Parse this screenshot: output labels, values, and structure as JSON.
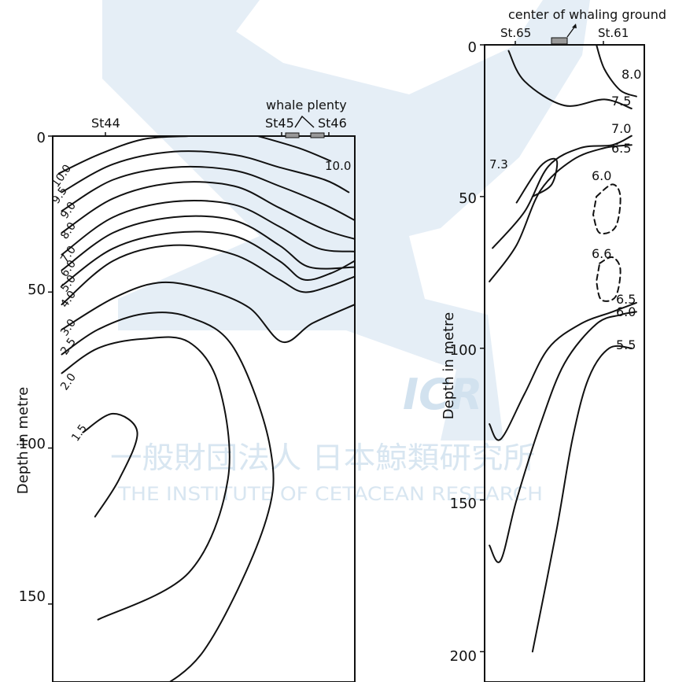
{
  "watermark": {
    "text_jp": "一般財団法人 日本鯨類研究所",
    "text_en": "THE INSTITUTE OF CETACEAN RESEARCH",
    "logo_text": "ICR",
    "color": "#cfe0ee"
  },
  "chart_data": [
    {
      "type": "contour",
      "ylabel": "Depth in metre",
      "ylim": [
        0,
        175
      ],
      "y_ticks": [
        0,
        50,
        100,
        150
      ],
      "y_tick_labels": [
        "0",
        "50",
        "100",
        "150"
      ],
      "stations": [
        "St44",
        "St45",
        "St46"
      ],
      "top_annotation": "whale plenty",
      "contour_labels": [
        "10.0",
        "10.0",
        "9.5",
        "9.0",
        "8.0",
        "7.0",
        "6.0",
        "5.0",
        "4.0",
        "3.0",
        "2.5",
        "2.0",
        "1.5"
      ],
      "series": [
        {
          "value": "10.0",
          "points": [
            [
              0.02,
              12
            ],
            [
              0.15,
              6
            ],
            [
              0.3,
              1
            ],
            [
              0.45,
              0
            ]
          ]
        },
        {
          "value": "10.0",
          "points": [
            [
              0.68,
              0
            ],
            [
              0.82,
              4
            ],
            [
              0.92,
              8
            ]
          ]
        },
        {
          "value": "9.5",
          "points": [
            [
              0.03,
              18
            ],
            [
              0.2,
              9
            ],
            [
              0.4,
              5
            ],
            [
              0.6,
              6
            ],
            [
              0.75,
              10
            ],
            [
              0.9,
              14
            ],
            [
              0.98,
              18
            ]
          ]
        },
        {
          "value": "9.0",
          "points": [
            [
              0.03,
              24
            ],
            [
              0.2,
              14
            ],
            [
              0.4,
              10
            ],
            [
              0.6,
              11
            ],
            [
              0.75,
              16
            ],
            [
              0.9,
              22
            ],
            [
              1.0,
              27
            ]
          ]
        },
        {
          "value": "8.0",
          "points": [
            [
              0.03,
              31
            ],
            [
              0.2,
              20
            ],
            [
              0.4,
              15
            ],
            [
              0.6,
              16
            ],
            [
              0.75,
              23
            ],
            [
              0.9,
              30
            ],
            [
              1.0,
              33
            ]
          ]
        },
        {
          "value": "7.0",
          "points": [
            [
              0.03,
              38
            ],
            [
              0.2,
              26
            ],
            [
              0.4,
              21
            ],
            [
              0.6,
              22
            ],
            [
              0.75,
              29
            ],
            [
              0.88,
              36
            ],
            [
              1.0,
              37
            ]
          ]
        },
        {
          "value": "6.0",
          "points": [
            [
              0.03,
              43
            ],
            [
              0.2,
              31
            ],
            [
              0.4,
              26
            ],
            [
              0.6,
              27
            ],
            [
              0.75,
              35
            ],
            [
              0.85,
              42
            ],
            [
              1.0,
              42
            ]
          ]
        },
        {
          "value": "5.0",
          "points": [
            [
              0.03,
              48
            ],
            [
              0.2,
              36
            ],
            [
              0.4,
              31
            ],
            [
              0.6,
              32
            ],
            [
              0.75,
              40
            ],
            [
              0.83,
              46
            ],
            [
              0.92,
              44
            ],
            [
              1.0,
              40
            ]
          ]
        },
        {
          "value": "4.0",
          "points": [
            [
              0.03,
              54
            ],
            [
              0.2,
              40
            ],
            [
              0.4,
              35
            ],
            [
              0.6,
              38
            ],
            [
              0.75,
              46
            ],
            [
              0.83,
              50
            ],
            [
              0.92,
              48
            ],
            [
              1.0,
              45
            ]
          ]
        },
        {
          "value": "3.0",
          "points": [
            [
              0.03,
              62
            ],
            [
              0.2,
              52
            ],
            [
              0.35,
              47
            ],
            [
              0.5,
              49
            ],
            [
              0.65,
              55
            ],
            [
              0.76,
              66
            ],
            [
              0.86,
              60
            ],
            [
              1.0,
              54
            ]
          ]
        },
        {
          "value": "2.5",
          "points": [
            [
              0.03,
              70
            ],
            [
              0.15,
              62
            ],
            [
              0.3,
              57
            ],
            [
              0.45,
              58
            ],
            [
              0.6,
              68
            ],
            [
              0.72,
              100
            ],
            [
              0.7,
              125
            ],
            [
              0.5,
              165
            ],
            [
              0.3,
              180
            ]
          ]
        },
        {
          "value": "2.0",
          "points": [
            [
              0.03,
              76
            ],
            [
              0.15,
              68
            ],
            [
              0.3,
              65
            ],
            [
              0.45,
              66
            ],
            [
              0.55,
              80
            ],
            [
              0.58,
              110
            ],
            [
              0.45,
              140
            ],
            [
              0.15,
              155
            ]
          ]
        },
        {
          "value": "1.5",
          "points": [
            [
              0.1,
              95
            ],
            [
              0.2,
              89
            ],
            [
              0.28,
              95
            ],
            [
              0.22,
              110
            ],
            [
              0.14,
              122
            ]
          ]
        }
      ]
    },
    {
      "type": "contour",
      "ylabel": "Depth in metre",
      "ylim": [
        0,
        210
      ],
      "y_ticks": [
        0,
        50,
        100,
        150,
        200
      ],
      "y_tick_labels": [
        "0",
        "50",
        "100",
        "150",
        "200"
      ],
      "stations": [
        "St.65",
        "St.61"
      ],
      "top_annotation": "center of whaling ground",
      "contour_labels": [
        "8.0",
        "7.5",
        "7.0",
        "6.5",
        "7.3",
        "6.0",
        "6.6",
        "6.5",
        "6.0",
        "5.5"
      ],
      "series": [
        {
          "value": "8.0",
          "points": [
            [
              0.7,
              0
            ],
            [
              0.75,
              8
            ],
            [
              0.85,
              15
            ],
            [
              0.95,
              17
            ]
          ]
        },
        {
          "value": "7.5",
          "points": [
            [
              0.15,
              2
            ],
            [
              0.25,
              12
            ],
            [
              0.5,
              20
            ],
            [
              0.75,
              18
            ],
            [
              0.92,
              21
            ]
          ]
        },
        {
          "value": "7.0",
          "points": [
            [
              0.05,
              67
            ],
            [
              0.25,
              55
            ],
            [
              0.4,
              40
            ],
            [
              0.6,
              34
            ],
            [
              0.8,
              33
            ],
            [
              0.92,
              30
            ]
          ]
        },
        {
          "value": "6.5",
          "points": [
            [
              0.03,
              78
            ],
            [
              0.2,
              66
            ],
            [
              0.35,
              48
            ],
            [
              0.55,
              38
            ],
            [
              0.75,
              34
            ],
            [
              0.92,
              33
            ]
          ]
        },
        {
          "value": "7.3",
          "points": [
            [
              0.2,
              52
            ],
            [
              0.35,
              40
            ],
            [
              0.45,
              38
            ],
            [
              0.42,
              46
            ],
            [
              0.3,
              50
            ]
          ]
        },
        {
          "value": "6.0",
          "points": [
            [
              0.7,
              50
            ],
            [
              0.8,
              46
            ],
            [
              0.85,
              50
            ],
            [
              0.82,
              60
            ],
            [
              0.72,
              62
            ],
            [
              0.68,
              56
            ]
          ]
        },
        {
          "value": "6.6",
          "points": [
            [
              0.72,
              72
            ],
            [
              0.8,
              70
            ],
            [
              0.85,
              74
            ],
            [
              0.82,
              83
            ],
            [
              0.73,
              84
            ],
            [
              0.7,
              78
            ]
          ]
        },
        {
          "value": "6.5",
          "points": [
            [
              0.03,
              125
            ],
            [
              0.1,
              130
            ],
            [
              0.25,
              115
            ],
            [
              0.4,
              100
            ],
            [
              0.6,
              92
            ],
            [
              0.8,
              88
            ],
            [
              0.95,
              85
            ]
          ]
        },
        {
          "value": "6.0",
          "points": [
            [
              0.03,
              165
            ],
            [
              0.1,
              170
            ],
            [
              0.2,
              150
            ],
            [
              0.35,
              125
            ],
            [
              0.5,
              105
            ],
            [
              0.7,
              92
            ],
            [
              0.85,
              89
            ],
            [
              0.95,
              88
            ]
          ]
        },
        {
          "value": "5.5",
          "points": [
            [
              0.3,
              200
            ],
            [
              0.45,
              160
            ],
            [
              0.55,
              130
            ],
            [
              0.65,
              110
            ],
            [
              0.78,
              100
            ],
            [
              0.92,
              100
            ]
          ]
        }
      ]
    }
  ]
}
